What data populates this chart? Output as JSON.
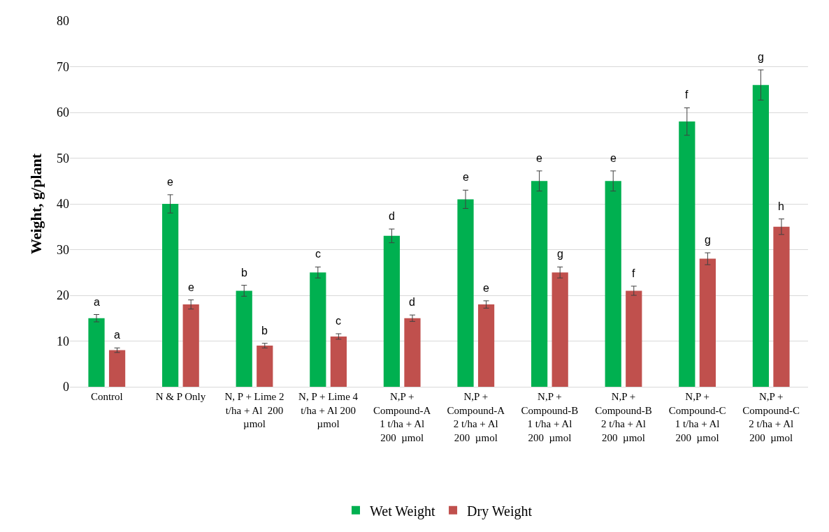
{
  "chart_data": {
    "type": "bar",
    "ylabel": "Weight, g/plant",
    "categories": [
      "Control",
      "N & P Only",
      "N, P + Lime 2\nt/ha + Al  200\nµmol",
      "N, P + Lime 4\nt/ha + Al 200\nµmol",
      "N,P +\nCompound-A\n1 t/ha + Al\n200  µmol",
      "N,P +\nCompound-A\n2 t/ha + Al\n200  µmol",
      "N,P +\nCompound-B\n1 t/ha + Al\n200  µmol",
      "N,P +\nCompound-B\n2 t/ha + Al\n200  µmol",
      "N,P +\nCompound-C\n1 t/ha + Al\n200  µmol",
      "N,P +\nCompound-C\n2 t/ha + Al\n200  µmol"
    ],
    "series": [
      {
        "name": "Wet Weight",
        "color": "#00b050",
        "values": [
          15,
          40,
          21,
          25,
          33,
          41,
          45,
          45,
          58,
          66
        ],
        "errors": [
          0.8,
          2,
          1.2,
          1.2,
          1.5,
          2,
          2.2,
          2.2,
          3,
          3.3
        ]
      },
      {
        "name": "Dry Weight",
        "color": "#c0504d",
        "values": [
          8,
          18,
          9,
          11,
          15,
          18,
          25,
          21,
          28,
          35
        ],
        "errors": [
          0.5,
          1,
          0.5,
          0.6,
          0.7,
          0.8,
          1.2,
          1,
          1.3,
          1.7
        ]
      }
    ],
    "ylim": [
      0,
      80
    ],
    "yticks": [
      0,
      10,
      20,
      30,
      40,
      50,
      60,
      70,
      80
    ],
    "grid": "y",
    "legend": "bottom",
    "annotations": [
      {
        "text": "a",
        "x": "Control",
        "y": 15
      },
      {
        "text": "a",
        "x": "Control",
        "y": 8
      },
      {
        "text": "e",
        "x": "N & P Only",
        "y": 40
      },
      {
        "text": "e",
        "x": "N & P Only",
        "y": 18
      },
      {
        "text": "b",
        "x": "N, P + Lime 2\nt/ha + Al  200\nµmol",
        "y": 21
      },
      {
        "text": "b",
        "x": "N, P + Lime 2\nt/ha + Al  200\nµmol",
        "y": 9
      },
      {
        "text": "c",
        "x": "N, P + Lime 4\nt/ha + Al 200\nµmol",
        "y": 25
      },
      {
        "text": "c",
        "x": "N, P + Lime 4\nt/ha + Al 200\nµmol",
        "y": 11
      },
      {
        "text": "d",
        "x": "N,P +\nCompound-A\n1 t/ha + Al\n200  µmol",
        "y": 33
      },
      {
        "text": "d",
        "x": "N,P +\nCompound-A\n1 t/ha + Al\n200  µmol",
        "y": 15
      },
      {
        "text": "e",
        "x": "N,P +\nCompound-A\n2 t/ha + Al\n200  µmol",
        "y": 41
      },
      {
        "text": "e",
        "x": "N,P +\nCompound-A\n2 t/ha + Al\n200  µmol",
        "y": 18
      },
      {
        "text": "e",
        "x": "N,P +\nCompound-B\n1 t/ha + Al\n200  µmol",
        "y": 45
      },
      {
        "text": "g",
        "x": "N,P +\nCompound-B\n1 t/ha + Al\n200  µmol",
        "y": 25
      },
      {
        "text": "e",
        "x": "N,P +\nCompound-B\n2 t/ha + Al\n200  µmol",
        "y": 45
      },
      {
        "text": "f",
        "x": "N,P +\nCompound-B\n2 t/ha + Al\n200  µmol",
        "y": 21
      },
      {
        "text": "f",
        "x": "N,P +\nCompound-C\n1 t/ha + Al\n200  µmol",
        "y": 58
      },
      {
        "text": "g",
        "x": "N,P +\nCompound-C\n1 t/ha + Al\n200  µmol",
        "y": 28
      },
      {
        "text": "g",
        "x": "N,P +\nCompound-C\n2 t/ha + Al\n200  µmol",
        "y": 66
      },
      {
        "text": "h",
        "x": "N,P +\nCompound-C\n2 t/ha + Al\n200  µmol",
        "y": 35
      }
    ]
  }
}
